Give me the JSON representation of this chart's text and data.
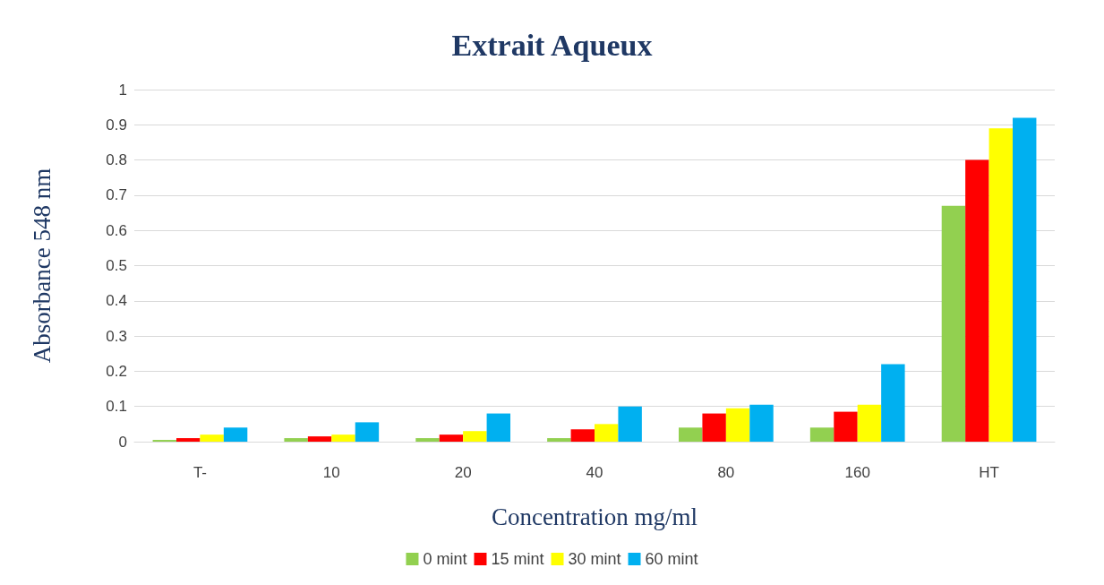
{
  "chart_data": {
    "type": "bar",
    "title": "Extrait Aqueux",
    "xlabel": "Concentration mg/ml",
    "ylabel": "Absorbance 548 nm",
    "categories": [
      "T-",
      "10",
      "20",
      "40",
      "80",
      "160",
      "HT"
    ],
    "series": [
      {
        "name": "0 mint",
        "color": "#92d050",
        "values": [
          0.005,
          0.01,
          0.01,
          0.01,
          0.04,
          0.04,
          0.67
        ]
      },
      {
        "name": "15 mint",
        "color": "#ff0000",
        "values": [
          0.01,
          0.015,
          0.02,
          0.035,
          0.08,
          0.085,
          0.8
        ]
      },
      {
        "name": "30 mint",
        "color": "#ffff00",
        "values": [
          0.02,
          0.02,
          0.03,
          0.05,
          0.095,
          0.105,
          0.89
        ]
      },
      {
        "name": "60 mint",
        "color": "#00b0f0",
        "values": [
          0.04,
          0.055,
          0.08,
          0.1,
          0.105,
          0.22,
          0.92
        ]
      }
    ],
    "ylim": [
      0,
      1
    ],
    "yticks": [
      0,
      0.1,
      0.2,
      0.3,
      0.4,
      0.5,
      0.6,
      0.7,
      0.8,
      0.9,
      1
    ],
    "grid": "y",
    "legend": "bottom"
  }
}
